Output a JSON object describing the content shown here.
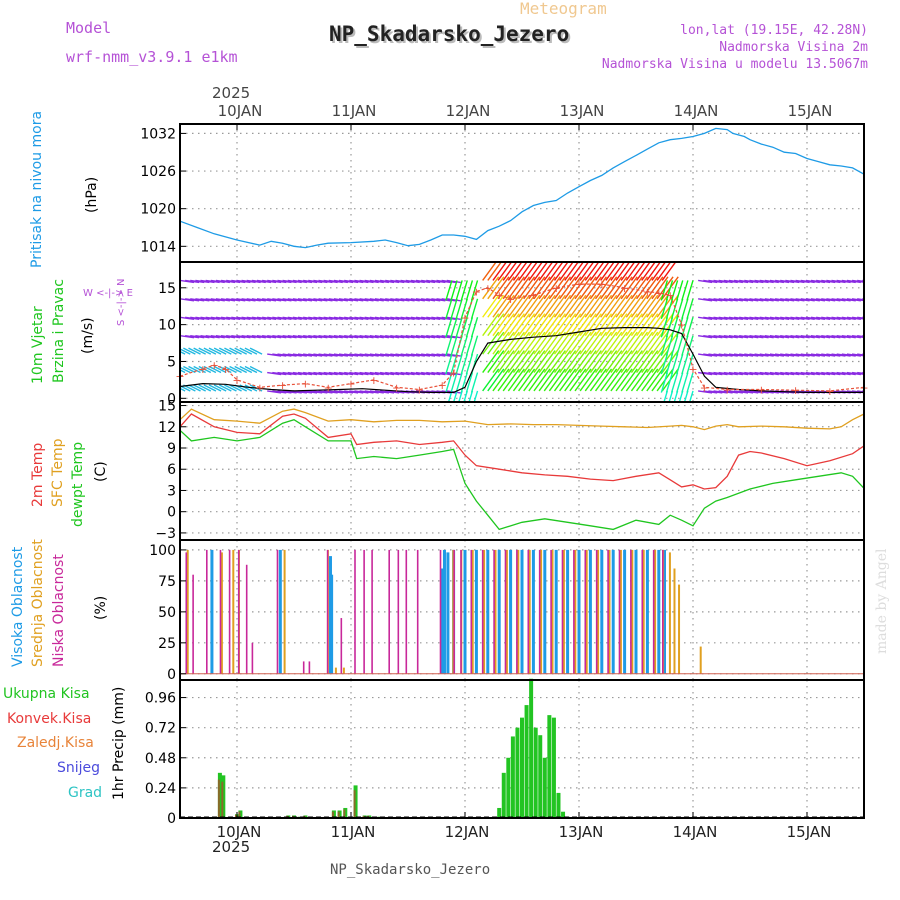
{
  "header": {
    "model_label": "Model",
    "model_name": "wrf-nmm_v3.9.1 e1km",
    "product": "Meteogram",
    "station": "NP_Skadarsko_Jezero",
    "lonlat": "lon,lat (19.15E, 42.28N)",
    "altitude": "Nadmorska Visina 2m",
    "model_altitude": "Nadmorska Visina u modelu 13.5067m"
  },
  "top_axis": {
    "year": "2025"
  },
  "bottom_axis": {
    "year": "2025"
  },
  "footer": {
    "station": "NP_Skadarsko_Jezero",
    "credit": "made by Angel"
  },
  "panel_labels": {
    "pressure": {
      "name": "Pritisak na nivou mora",
      "unit": "(hPa)"
    },
    "wind": {
      "name1": "10m Vjetar",
      "name2": "Brzina i Pravac",
      "unit": "(m/s)",
      "compass": "W <-|-> E",
      "compass2": "S <-|-> N"
    },
    "temp": {
      "t2": "2m Temp",
      "sfc": "SFC Temp",
      "dew": "dewpt Temp",
      "unit": "(C)"
    },
    "cloud": {
      "high": "Visoka Oblacnost",
      "mid": "Srednja Oblacnost",
      "low": "Niska Oblacnost",
      "unit": "(%)"
    },
    "precip": {
      "ylabel": "1hr Precip (mm)",
      "legend": [
        "Ukupna Kisa",
        "Konvek.Kisa",
        "Zaledj.Kisa",
        "Snijeg",
        "Grad"
      ]
    }
  },
  "colors": {
    "pressure": "#1e9be6",
    "t2": "#e83a3a",
    "sfc": "#e0a020",
    "dew": "#1fc61f",
    "high": "#1e9be6",
    "mid": "#e0a020",
    "low": "#c8289a",
    "total": "#22c422",
    "conv": "#e83a3a",
    "frz": "#e8843a",
    "snow": "#4b4bdc",
    "grad": "#2dc4c4",
    "purple": "#b552d6",
    "gust": "#e8523a"
  },
  "chart_data": [
    {
      "type": "line",
      "title": "Pritisak na nivou mora",
      "ylabel": "(hPa)",
      "x_unit": "days since 10 JAN 2025 00Z",
      "x_ticks": [
        "10JAN",
        "11JAN",
        "12JAN",
        "13JAN",
        "14JAN",
        "15JAN"
      ],
      "xlim": [
        -0.5,
        5.5
      ],
      "ylim": [
        1011.5,
        1033.5
      ],
      "yticks": [
        1014,
        1020,
        1026,
        1032
      ],
      "grid": true,
      "series": [
        {
          "name": "Pritisak na nivou mora",
          "x": [
            -0.5,
            -0.35,
            -0.2,
            0.0,
            0.2,
            0.3,
            0.4,
            0.5,
            0.6,
            0.7,
            0.8,
            1.0,
            1.2,
            1.3,
            1.4,
            1.5,
            1.6,
            1.7,
            1.8,
            1.9,
            2.0,
            2.1,
            2.2,
            2.3,
            2.4,
            2.5,
            2.6,
            2.7,
            2.8,
            2.9,
            3.0,
            3.1,
            3.2,
            3.3,
            3.4,
            3.5,
            3.6,
            3.7,
            3.8,
            3.9,
            4.0,
            4.1,
            4.2,
            4.3,
            4.35,
            4.45,
            4.5,
            4.6,
            4.7,
            4.8,
            4.9,
            5.0,
            5.1,
            5.2,
            5.3,
            5.4,
            5.5
          ],
          "values": [
            1018.0,
            1017.0,
            1016.0,
            1015.0,
            1014.2,
            1014.8,
            1014.5,
            1014.0,
            1013.8,
            1014.2,
            1014.5,
            1014.6,
            1014.8,
            1015.0,
            1014.6,
            1014.1,
            1014.3,
            1015.0,
            1015.8,
            1015.8,
            1015.6,
            1015.1,
            1016.5,
            1017.2,
            1018.1,
            1019.5,
            1020.5,
            1021.0,
            1021.3,
            1022.5,
            1023.5,
            1024.5,
            1025.3,
            1026.5,
            1027.5,
            1028.5,
            1029.5,
            1030.5,
            1031.0,
            1031.2,
            1031.5,
            1032.0,
            1032.8,
            1032.6,
            1032.0,
            1031.5,
            1031.0,
            1030.3,
            1029.8,
            1029.0,
            1028.8,
            1028.0,
            1027.5,
            1027.0,
            1026.8,
            1026.5,
            1025.5
          ]
        }
      ]
    },
    {
      "type": "line",
      "title": "10m Vjetar Brzina i Pravac",
      "ylabel": "(m/s)",
      "xlim": [
        -0.5,
        5.5
      ],
      "ylim": [
        -0.5,
        18.5
      ],
      "yticks": [
        0,
        5,
        10,
        15
      ],
      "grid": true,
      "series": [
        {
          "name": "speed",
          "x": [
            -0.5,
            -0.3,
            -0.1,
            0.1,
            0.3,
            0.5,
            0.7,
            0.9,
            1.1,
            1.3,
            1.5,
            1.7,
            1.8,
            1.9,
            2.0,
            2.1,
            2.2,
            2.4,
            2.6,
            2.8,
            3.0,
            3.2,
            3.4,
            3.6,
            3.7,
            3.8,
            3.9,
            4.0,
            4.1,
            4.2,
            4.4,
            4.6,
            4.8,
            5.0,
            5.2,
            5.5
          ],
          "values": [
            1.6,
            2.0,
            1.9,
            1.5,
            1.2,
            1.0,
            1.1,
            1.2,
            1.3,
            1.1,
            0.9,
            0.8,
            0.8,
            0.8,
            1.5,
            5.0,
            7.5,
            8.0,
            8.3,
            8.5,
            9.0,
            9.5,
            9.6,
            9.6,
            9.5,
            9.3,
            8.8,
            6.0,
            3.0,
            1.5,
            1.2,
            1.0,
            0.9,
            0.8,
            0.8,
            0.8
          ]
        },
        {
          "name": "gust",
          "x": [
            -0.5,
            -0.3,
            -0.2,
            -0.1,
            0.0,
            0.2,
            0.4,
            0.6,
            0.8,
            1.0,
            1.2,
            1.4,
            1.6,
            1.8,
            1.9,
            2.0,
            2.1,
            2.2,
            2.3,
            2.4,
            2.6,
            2.8,
            3.0,
            3.2,
            3.4,
            3.6,
            3.7,
            3.8,
            3.9,
            4.0,
            4.1,
            4.3,
            4.6,
            4.9,
            5.2,
            5.5
          ],
          "values": [
            3.0,
            4.0,
            4.5,
            4.0,
            2.5,
            1.5,
            1.8,
            2.0,
            1.5,
            2.0,
            2.5,
            1.5,
            1.2,
            1.8,
            3.5,
            11.0,
            14.5,
            15.0,
            14.0,
            13.5,
            14.0,
            15.0,
            15.5,
            15.5,
            15.0,
            14.5,
            14.3,
            14.0,
            10.0,
            4.0,
            1.5,
            1.2,
            1.2,
            1.1,
            1.0,
            1.5
          ]
        }
      ]
    },
    {
      "type": "line",
      "title": "2m Temp / SFC Temp / dewpt Temp",
      "ylabel": "(C)",
      "xlim": [
        -0.5,
        5.5
      ],
      "ylim": [
        -4,
        15.5
      ],
      "yticks": [
        -3,
        0,
        3,
        6,
        9,
        12,
        15
      ],
      "grid": true,
      "series": [
        {
          "name": "2m Temp",
          "x": [
            -0.5,
            -0.4,
            -0.2,
            0.0,
            0.2,
            0.4,
            0.5,
            0.6,
            0.8,
            1.0,
            1.05,
            1.2,
            1.4,
            1.6,
            1.8,
            1.9,
            2.0,
            2.1,
            2.3,
            2.5,
            2.7,
            2.9,
            3.1,
            3.3,
            3.5,
            3.7,
            3.8,
            3.9,
            4.0,
            4.1,
            4.2,
            4.3,
            4.4,
            4.5,
            4.6,
            4.8,
            5.0,
            5.2,
            5.4,
            5.5
          ],
          "values": [
            12.0,
            13.8,
            12.0,
            11.2,
            11.0,
            13.5,
            13.8,
            13.2,
            10.5,
            11.0,
            9.5,
            9.8,
            10.0,
            9.5,
            9.8,
            10.0,
            8.0,
            6.5,
            6.0,
            5.5,
            5.2,
            5.0,
            4.6,
            4.4,
            5.0,
            5.5,
            4.5,
            3.5,
            3.8,
            3.2,
            3.4,
            5.0,
            8.0,
            8.5,
            8.3,
            7.5,
            6.5,
            7.2,
            8.2,
            9.3
          ]
        },
        {
          "name": "SFC Temp",
          "x": [
            -0.5,
            -0.4,
            -0.2,
            0.0,
            0.2,
            0.4,
            0.5,
            0.6,
            0.8,
            1.0,
            1.2,
            1.4,
            1.6,
            1.8,
            2.0,
            2.2,
            2.4,
            2.6,
            2.8,
            3.0,
            3.2,
            3.4,
            3.6,
            3.8,
            3.9,
            4.0,
            4.1,
            4.2,
            4.3,
            4.4,
            4.6,
            4.8,
            5.0,
            5.2,
            5.3,
            5.4,
            5.5
          ],
          "values": [
            13.0,
            14.5,
            13.0,
            12.8,
            12.5,
            14.2,
            14.5,
            14.0,
            12.8,
            13.0,
            12.7,
            12.9,
            12.9,
            12.7,
            12.8,
            12.3,
            12.4,
            12.3,
            12.3,
            12.2,
            12.1,
            12.0,
            11.9,
            12.1,
            12.2,
            12.0,
            11.6,
            12.1,
            12.3,
            12.0,
            12.1,
            12.0,
            11.8,
            11.7,
            12.0,
            13.0,
            13.8
          ]
        },
        {
          "name": "dewpt Temp",
          "x": [
            -0.5,
            -0.4,
            -0.2,
            0.0,
            0.2,
            0.4,
            0.5,
            0.6,
            0.8,
            1.0,
            1.05,
            1.2,
            1.4,
            1.6,
            1.8,
            1.9,
            2.0,
            2.1,
            2.2,
            2.3,
            2.5,
            2.7,
            2.9,
            3.1,
            3.3,
            3.5,
            3.7,
            3.8,
            3.9,
            4.0,
            4.1,
            4.2,
            4.3,
            4.5,
            4.7,
            4.9,
            5.1,
            5.3,
            5.4,
            5.5
          ],
          "values": [
            11.5,
            10.0,
            10.5,
            10.0,
            10.5,
            12.5,
            13.0,
            12.0,
            10.0,
            10.0,
            7.5,
            7.8,
            7.5,
            8.0,
            8.5,
            8.8,
            4.0,
            1.5,
            -0.5,
            -2.5,
            -1.5,
            -1.0,
            -1.5,
            -2.0,
            -2.5,
            -1.2,
            -1.8,
            -0.5,
            -1.2,
            -2.0,
            0.5,
            1.5,
            2.0,
            3.2,
            4.0,
            4.5,
            5.0,
            5.5,
            5.0,
            3.3
          ]
        }
      ]
    },
    {
      "type": "bar",
      "title": "Visoka / Srednja / Niska Oblacnost",
      "ylabel": "(%)",
      "xlim": [
        -0.5,
        5.5
      ],
      "ylim": [
        -5,
        108
      ],
      "yticks": [
        0,
        25,
        50,
        75,
        100
      ],
      "grid": true,
      "series": [
        {
          "name": "Visoka Oblacnost",
          "x": [
            -0.22,
            0.38,
            0.82,
            0.83,
            1.8,
            1.82,
            1.85,
            1.9,
            2.0,
            2.1,
            2.2,
            2.3,
            2.4,
            2.5,
            2.6,
            2.7,
            2.8,
            2.9,
            3.0,
            3.1,
            3.2,
            3.3,
            3.4,
            3.5,
            3.6,
            3.7,
            3.75
          ],
          "values": [
            100,
            100,
            95,
            80,
            85,
            100,
            98,
            100,
            100,
            100,
            100,
            100,
            100,
            100,
            100,
            100,
            100,
            100,
            100,
            100,
            100,
            100,
            100,
            100,
            100,
            100,
            100
          ]
        },
        {
          "name": "Srednja Oblacnost",
          "x": [
            -0.45,
            -0.15,
            -0.05,
            0.0,
            0.4,
            0.78,
            0.85,
            0.92,
            1.88,
            1.95,
            2.05,
            2.15,
            2.25,
            2.35,
            2.45,
            2.55,
            2.65,
            2.75,
            2.85,
            2.95,
            3.05,
            3.15,
            3.25,
            3.35,
            3.45,
            3.55,
            3.65,
            3.72,
            3.78,
            3.82,
            3.86,
            4.05
          ],
          "values": [
            100,
            98,
            100,
            100,
            100,
            100,
            5,
            5,
            100,
            100,
            100,
            100,
            100,
            100,
            100,
            100,
            100,
            100,
            100,
            100,
            100,
            100,
            100,
            100,
            100,
            100,
            100,
            100,
            98,
            85,
            72,
            22
          ]
        },
        {
          "name": "Niska Oblacnost",
          "x": [
            -0.48,
            -0.42,
            -0.3,
            -0.18,
            -0.1,
            -0.02,
            0.05,
            0.1,
            0.32,
            0.55,
            0.6,
            0.76,
            0.88,
            1.0,
            1.08,
            1.15,
            1.3,
            1.38,
            1.45,
            1.55,
            1.75,
            1.87,
            1.93,
            2.02,
            2.12,
            2.22,
            2.32,
            2.42,
            2.52,
            2.62,
            2.72,
            2.82,
            2.92,
            3.02,
            3.12,
            3.22,
            3.32,
            3.42,
            3.52,
            3.62,
            3.7
          ],
          "values": [
            98,
            80,
            100,
            100,
            100,
            100,
            88,
            25,
            100,
            10,
            10,
            100,
            45,
            100,
            100,
            100,
            100,
            100,
            100,
            100,
            100,
            100,
            100,
            100,
            100,
            100,
            100,
            100,
            100,
            100,
            100,
            100,
            100,
            100,
            100,
            100,
            100,
            100,
            100,
            100,
            100
          ]
        }
      ]
    },
    {
      "type": "bar",
      "title": "1hr Precip (mm)",
      "ylabel": "1hr Precip (mm)",
      "xlim": [
        -0.5,
        5.5
      ],
      "ylim": [
        0,
        1.1
      ],
      "yticks": [
        0,
        0.24,
        0.48,
        0.72,
        0.96
      ],
      "grid": true,
      "series": [
        {
          "name": "Ukupna Kisa",
          "x": [
            -0.15,
            -0.12,
            0.0,
            0.03,
            0.45,
            0.5,
            0.55,
            0.6,
            0.85,
            0.9,
            0.95,
            0.99,
            1.04,
            1.12,
            1.16,
            1.2,
            1.25,
            2.3,
            2.34,
            2.38,
            2.42,
            2.46,
            2.5,
            2.54,
            2.58,
            2.62,
            2.66,
            2.7,
            2.74,
            2.78,
            2.82,
            2.86,
            2.9
          ],
          "values": [
            0.36,
            0.34,
            0.03,
            0.06,
            0.02,
            0.02,
            0.01,
            0.02,
            0.06,
            0.06,
            0.08,
            0.01,
            0.26,
            0.02,
            0.02,
            0.01,
            0.01,
            0.08,
            0.36,
            0.48,
            0.65,
            0.72,
            0.8,
            0.9,
            1.11,
            0.72,
            0.66,
            0.48,
            0.82,
            0.8,
            0.2,
            0.05,
            0.01
          ]
        }
      ]
    }
  ]
}
